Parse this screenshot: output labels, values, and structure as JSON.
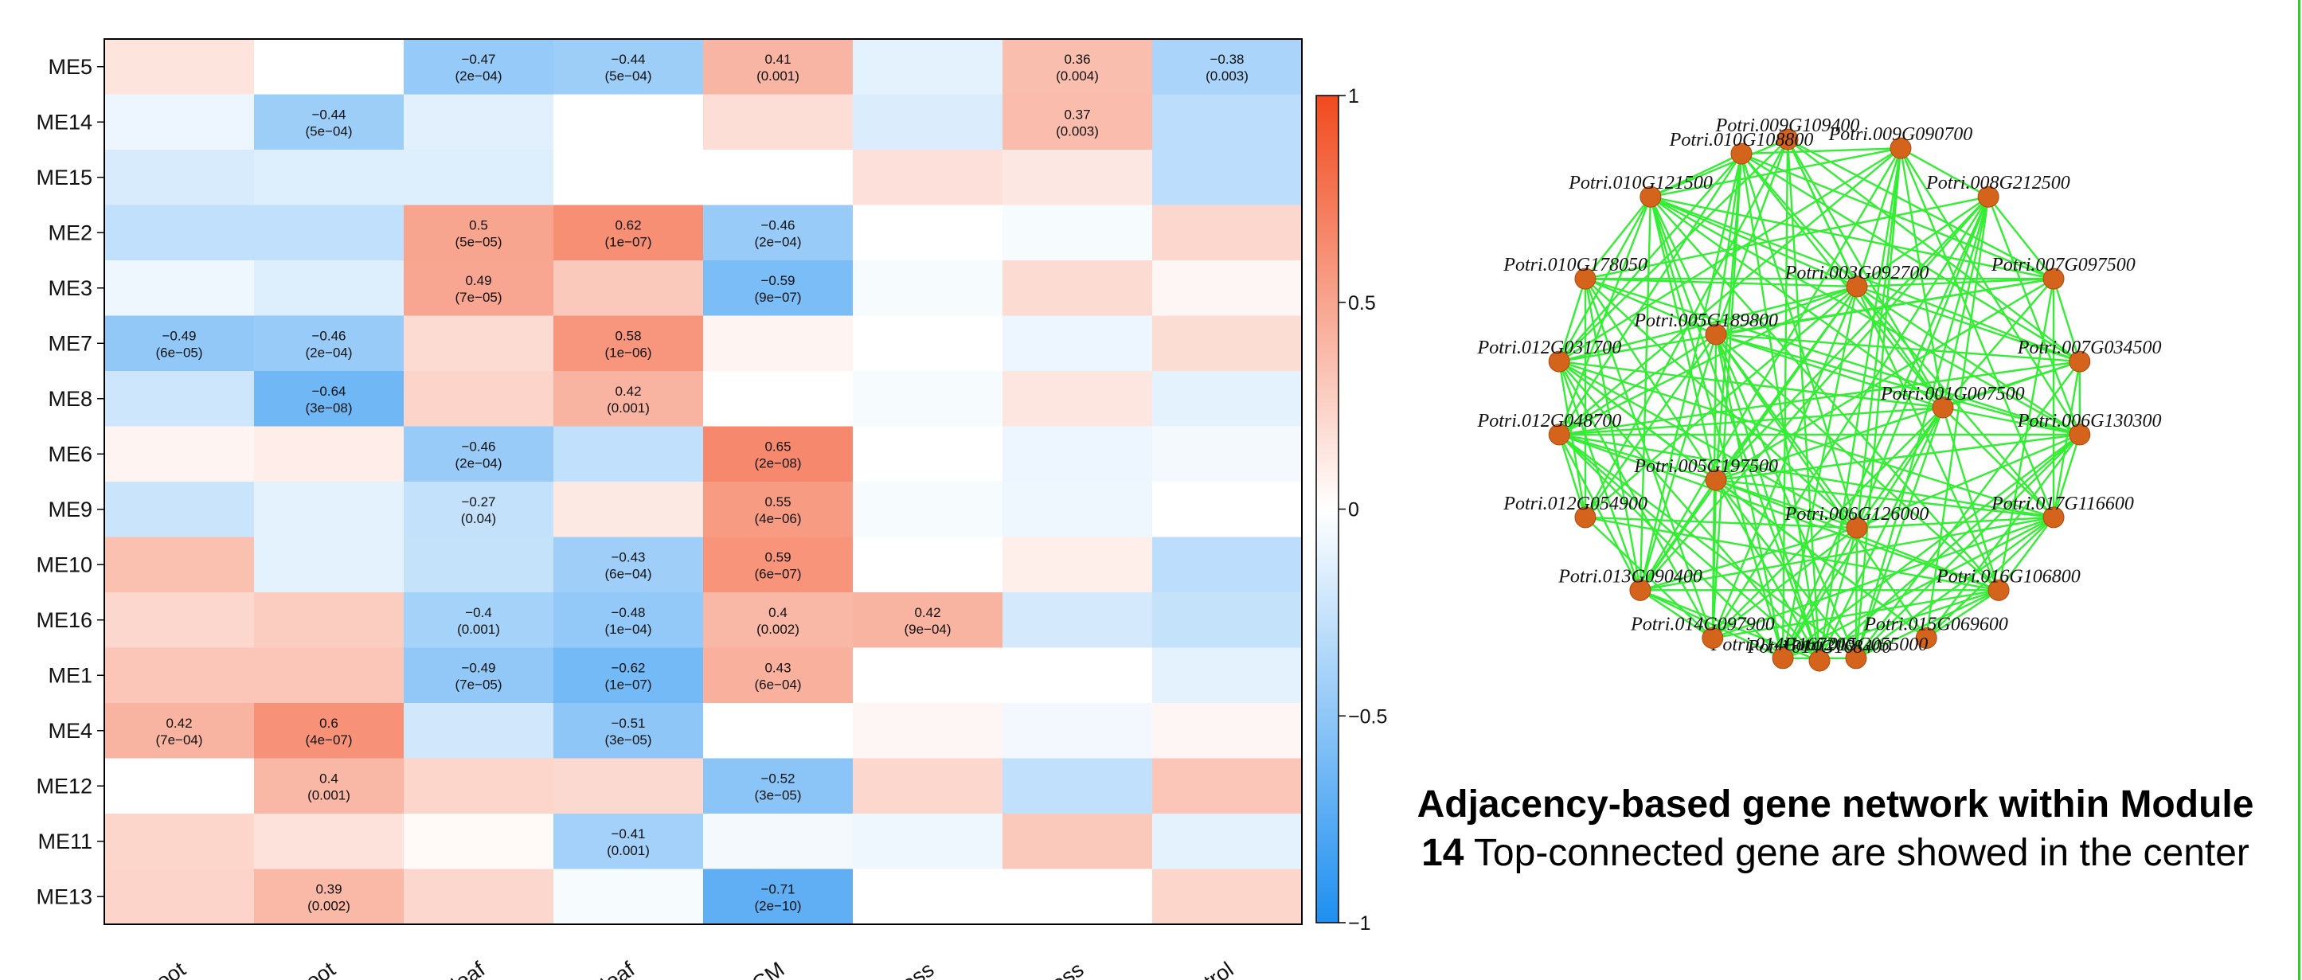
{
  "chart_data": [
    {
      "type": "heatmap",
      "rows": [
        "ME5",
        "ME14",
        "ME15",
        "ME2",
        "ME3",
        "ME7",
        "ME8",
        "ME6",
        "ME9",
        "ME10",
        "ME16",
        "ME1",
        "ME4",
        "ME12",
        "ME11",
        "ME13"
      ],
      "columns": [
        "Root",
        "e.Root",
        "b.leaf",
        "o.leaf",
        "ECM",
        "stress",
        "stress",
        "control"
      ],
      "values": [
        [
          0.15,
          0.0,
          -0.47,
          -0.44,
          0.41,
          -0.12,
          0.36,
          -0.38
        ],
        [
          -0.08,
          -0.44,
          -0.13,
          0.0,
          0.18,
          -0.16,
          0.37,
          -0.3
        ],
        [
          -0.18,
          -0.15,
          -0.15,
          0.0,
          0.0,
          0.17,
          0.13,
          -0.3
        ],
        [
          -0.28,
          -0.28,
          0.5,
          0.62,
          -0.46,
          0.0,
          -0.04,
          0.22
        ],
        [
          -0.07,
          -0.15,
          0.49,
          0.3,
          -0.59,
          -0.04,
          0.2,
          0.05
        ],
        [
          -0.49,
          -0.46,
          0.2,
          0.58,
          0.06,
          0.0,
          -0.08,
          0.19
        ],
        [
          -0.22,
          -0.64,
          0.24,
          0.42,
          0.0,
          -0.04,
          0.14,
          -0.12
        ],
        [
          0.06,
          0.1,
          -0.46,
          -0.28,
          0.65,
          0.0,
          -0.08,
          -0.05
        ],
        [
          -0.24,
          -0.12,
          -0.27,
          0.12,
          0.55,
          -0.04,
          -0.07,
          0.0
        ],
        [
          0.35,
          -0.12,
          -0.26,
          -0.43,
          0.59,
          0.0,
          0.09,
          -0.3
        ],
        [
          0.22,
          0.28,
          -0.4,
          -0.48,
          0.4,
          0.42,
          -0.19,
          -0.26
        ],
        [
          0.32,
          0.32,
          -0.49,
          -0.62,
          0.43,
          0.0,
          0.0,
          -0.12
        ],
        [
          0.42,
          0.6,
          -0.21,
          -0.51,
          0.0,
          0.05,
          -0.06,
          0.05
        ],
        [
          0.0,
          0.4,
          0.23,
          0.21,
          -0.52,
          0.22,
          -0.28,
          0.32
        ],
        [
          0.23,
          0.16,
          0.03,
          -0.41,
          -0.05,
          -0.07,
          0.3,
          -0.12
        ],
        [
          0.24,
          0.39,
          0.22,
          -0.04,
          -0.71,
          0.0,
          0.0,
          0.23
        ]
      ],
      "cell_labels": [
        [
          null,
          null,
          "−0.47\n(2e−04)",
          "−0.44\n(5e−04)",
          "0.41\n(0.001)",
          null,
          "0.36\n(0.004)",
          "−0.38\n(0.003)"
        ],
        [
          null,
          "−0.44\n(5e−04)",
          null,
          null,
          null,
          null,
          "0.37\n(0.003)",
          null
        ],
        [
          null,
          null,
          null,
          null,
          null,
          null,
          null,
          null
        ],
        [
          null,
          null,
          "0.5\n(5e−05)",
          "0.62\n(1e−07)",
          "−0.46\n(2e−04)",
          null,
          null,
          null
        ],
        [
          null,
          null,
          "0.49\n(7e−05)",
          null,
          "−0.59\n(9e−07)",
          null,
          null,
          null
        ],
        [
          "−0.49\n(6e−05)",
          "−0.46\n(2e−04)",
          null,
          "0.58\n(1e−06)",
          null,
          null,
          null,
          null
        ],
        [
          null,
          "−0.64\n(3e−08)",
          null,
          "0.42\n(0.001)",
          null,
          null,
          null,
          null
        ],
        [
          null,
          null,
          "−0.46\n(2e−04)",
          null,
          "0.65\n(2e−08)",
          null,
          null,
          null
        ],
        [
          null,
          null,
          "−0.27\n(0.04)",
          null,
          "0.55\n(4e−06)",
          null,
          null,
          null
        ],
        [
          null,
          null,
          null,
          "−0.43\n(6e−04)",
          "0.59\n(6e−07)",
          null,
          null,
          null
        ],
        [
          null,
          null,
          "−0.4\n(0.001)",
          "−0.48\n(1e−04)",
          "0.4\n(0.002)",
          "0.42\n(9e−04)",
          null,
          null
        ],
        [
          null,
          null,
          "−0.49\n(7e−05)",
          "−0.62\n(1e−07)",
          "0.43\n(6e−04)",
          null,
          null,
          null
        ],
        [
          "0.42\n(7e−04)",
          "0.6\n(4e−07)",
          null,
          "−0.51\n(3e−05)",
          null,
          null,
          null,
          null
        ],
        [
          null,
          "0.4\n(0.001)",
          null,
          null,
          "−0.52\n(3e−05)",
          null,
          null,
          null
        ],
        [
          null,
          null,
          null,
          "−0.41\n(0.001)",
          null,
          null,
          null,
          null
        ],
        [
          null,
          "0.39\n(0.002)",
          null,
          null,
          "−0.71\n(2e−10)",
          null,
          null,
          null
        ]
      ],
      "color_scale": {
        "min": -1,
        "max": 1,
        "low": "#1f8ff0",
        "mid": "#ffffff",
        "high": "#f14a1e"
      },
      "colorbar_ticks": [
        "1",
        "0.5",
        "0",
        "−0.5",
        "−1"
      ]
    },
    {
      "type": "network",
      "edge_color": "#33ee33",
      "node_color": "#d4631c",
      "nodes": [
        "Potri.009G109400",
        "Potri.009G090700",
        "Potri.008G212500",
        "Potri.007G097500",
        "Potri.007G034500",
        "Potri.006G130300",
        "Potri.017G116600",
        "Potri.016G106800",
        "Potri.015G069600",
        "Potri.015G055000",
        "Potri.014G168400",
        "Potri.014G167200",
        "Potri.014G097900",
        "Potri.013G090400",
        "Potri.012G054900",
        "Potri.012G048700",
        "Potri.012G031700",
        "Potri.010G178050",
        "Potri.010G121500",
        "Potri.010G108800",
        "Potri.003G092700",
        "Potri.005G189800",
        "Potri.001G007500",
        "Potri.005G197500",
        "Potri.006G126000"
      ]
    }
  ],
  "caption": {
    "bold": "Adjacency-based gene network within Module 14",
    "normal": " Top-connected gene are showed in the center"
  }
}
